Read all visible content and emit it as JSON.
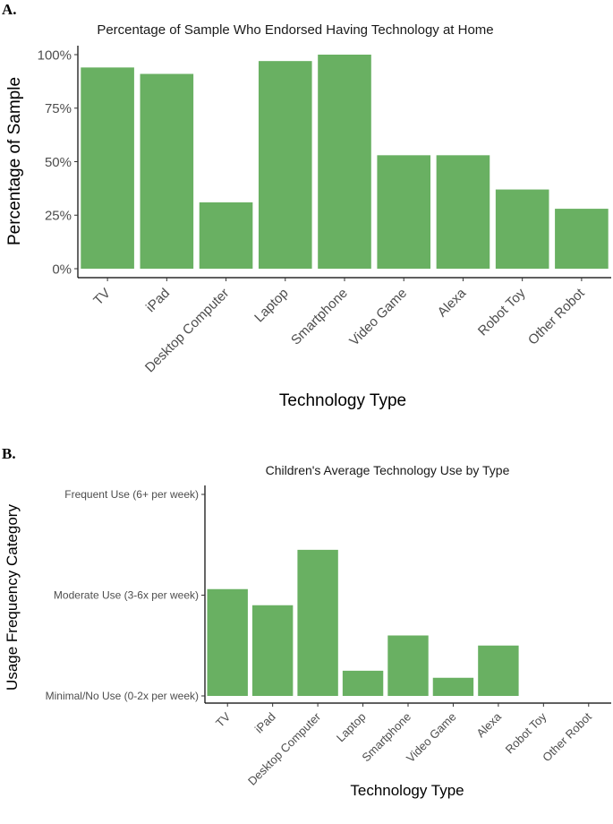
{
  "panels": [
    {
      "letter": "A."
    },
    {
      "letter": "B."
    }
  ],
  "chart_data": [
    {
      "type": "bar",
      "title": "Percentage of Sample Who Endorsed Having Technology at Home",
      "xlabel": "Technology Type",
      "ylabel": "Percentage of Sample",
      "categories": [
        "TV",
        "iPad",
        "Desktop Computer",
        "Laptop",
        "Smartphone",
        "Video Game",
        "Alexa",
        "Robot Toy",
        "Other Robot"
      ],
      "values": [
        94,
        91,
        31,
        97,
        100,
        53,
        53,
        37,
        28
      ],
      "ylim": [
        0,
        100
      ],
      "yticks": [
        0,
        25,
        50,
        75,
        100
      ],
      "ytick_labels": [
        "0%",
        "25%",
        "50%",
        "75%",
        "100%"
      ],
      "bar_color": "#69b062",
      "grid": false
    },
    {
      "type": "bar",
      "title": "Children's Average Technology Use by Type",
      "xlabel": "Technology Type",
      "ylabel": "Usage Frequency Category",
      "categories": [
        "TV",
        "iPad",
        "Desktop Computer",
        "Laptop",
        "Smartphone",
        "Video Game",
        "Alexa",
        "Robot Toy",
        "Other Robot"
      ],
      "values": [
        1.06,
        0.9,
        1.45,
        0.25,
        0.6,
        0.18,
        0.5,
        0,
        0
      ],
      "ylim": [
        0,
        2
      ],
      "yticks": [
        0,
        1,
        2
      ],
      "ytick_labels": [
        "Minimal/No Use (0-2x per week)",
        "Moderate Use (3-6x per week)",
        "Frequent Use (6+ per week)"
      ],
      "bar_color": "#69b062",
      "grid": false
    }
  ]
}
